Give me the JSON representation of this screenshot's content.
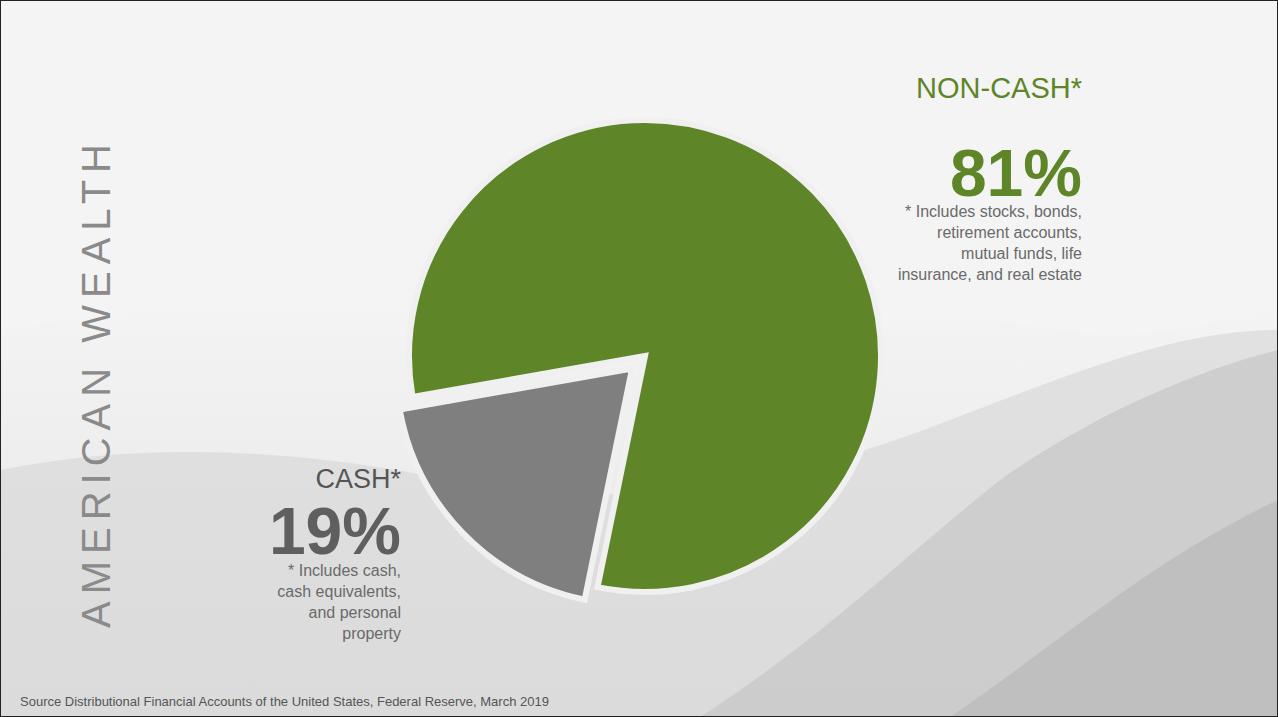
{
  "chart_data": {
    "type": "pie",
    "title": "AMERICAN WEALTH",
    "categories": [
      "NON-CASH*",
      "CASH*"
    ],
    "values": [
      81,
      19
    ],
    "value_labels": [
      "81%",
      "19%"
    ],
    "data_labels": true,
    "colors": [
      "#5e8527",
      "#7f7f7f"
    ],
    "annotations": [
      "* Includes stocks, bonds, retirement accounts, mutual funds, life insurance, and real estate",
      "* Includes cash, cash equivalents, and personal property"
    ],
    "source": "Source Distributional Financial Accounts of the United States, Federal Reserve, March 2019"
  }
}
